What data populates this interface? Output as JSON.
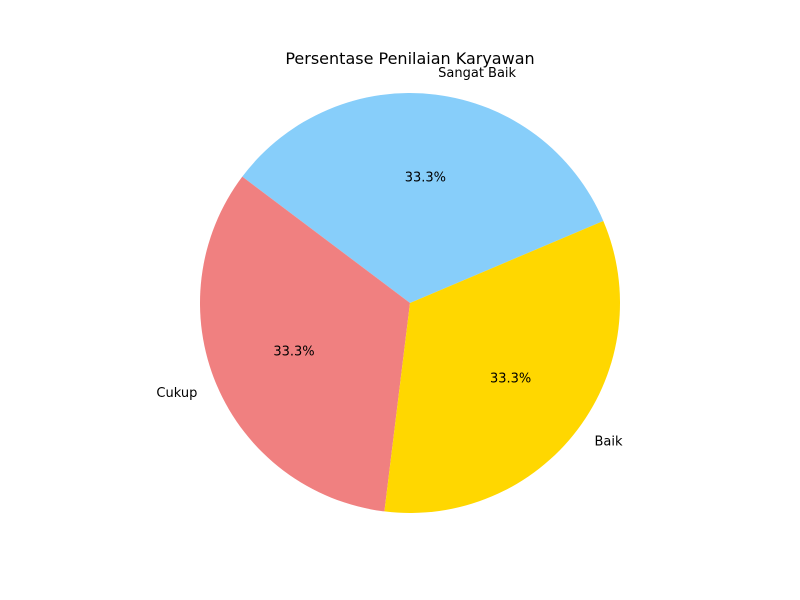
{
  "chart_data": {
    "type": "pie",
    "title": "Persentase Penilaian Karyawan",
    "categories": [
      "Sangat Baik",
      "Cukup",
      "Baik"
    ],
    "values": [
      33.3,
      33.3,
      33.3
    ],
    "percent_labels": [
      "33.3%",
      "33.3%",
      "33.3%"
    ],
    "colors": [
      "#87CEFA",
      "#F08080",
      "#FFD700"
    ],
    "grid": false,
    "legend": "none"
  }
}
